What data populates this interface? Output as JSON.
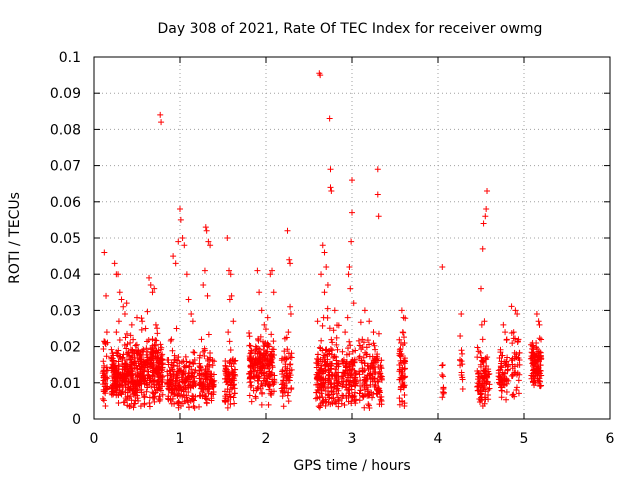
{
  "chart_data": {
    "type": "scatter",
    "title": "Day 308 of 2021, Rate Of TEC Index for receiver owmg",
    "xlabel": "GPS time / hours",
    "ylabel": "ROTI / TECUs",
    "xlim": [
      0,
      6
    ],
    "ylim": [
      0,
      0.1
    ],
    "x_ticks": [
      0,
      1,
      2,
      3,
      4,
      5,
      6
    ],
    "x_tick_labels": [
      "0",
      "1",
      "2",
      "3",
      "4",
      "5",
      "6"
    ],
    "y_ticks": [
      0,
      0.01,
      0.02,
      0.03,
      0.04,
      0.05,
      0.06,
      0.07,
      0.08,
      0.09,
      0.1
    ],
    "y_tick_labels": [
      "0",
      "0.01",
      "0.02",
      "0.03",
      "0.04",
      "0.05",
      "0.06",
      "0.07",
      "0.08",
      "0.09",
      "0.1"
    ],
    "grid": true,
    "marker": "+",
    "marker_color": "#ff0000",
    "series": [
      {
        "name": "ROTI",
        "clusters": [
          {
            "x_start": 0.1,
            "x_end": 0.16,
            "count": 40,
            "y_base": 0.012,
            "spread": 0.004,
            "outliers": [
              [
                0.12,
                0.046
              ],
              [
                0.14,
                0.034
              ],
              [
                0.15,
                0.024
              ],
              [
                0.13,
                0.021
              ]
            ]
          },
          {
            "x_start": 0.2,
            "x_end": 0.4,
            "count": 170,
            "y_base": 0.012,
            "spread": 0.005,
            "outliers": [
              [
                0.24,
                0.043
              ],
              [
                0.26,
                0.04
              ],
              [
                0.28,
                0.04
              ],
              [
                0.3,
                0.035
              ],
              [
                0.32,
                0.033
              ],
              [
                0.34,
                0.031
              ],
              [
                0.36,
                0.029
              ],
              [
                0.26,
                0.024
              ],
              [
                0.29,
                0.027
              ],
              [
                0.38,
                0.032
              ]
            ]
          },
          {
            "x_start": 0.4,
            "x_end": 0.62,
            "count": 200,
            "y_base": 0.012,
            "spread": 0.005,
            "outliers": [
              [
                0.44,
                0.026
              ],
              [
                0.5,
                0.028
              ],
              [
                0.56,
                0.027
              ],
              [
                0.6,
                0.025
              ]
            ]
          },
          {
            "x_start": 0.62,
            "x_end": 0.8,
            "count": 160,
            "y_base": 0.013,
            "spread": 0.005,
            "outliers": [
              [
                0.64,
                0.039
              ],
              [
                0.66,
                0.037
              ],
              [
                0.68,
                0.035
              ],
              [
                0.7,
                0.036
              ],
              [
                0.77,
                0.084
              ],
              [
                0.78,
                0.082
              ],
              [
                0.72,
                0.026
              ]
            ]
          },
          {
            "x_start": 0.85,
            "x_end": 1.18,
            "count": 200,
            "y_base": 0.01,
            "spread": 0.004,
            "outliers": [
              [
                0.92,
                0.045
              ],
              [
                0.95,
                0.043
              ],
              [
                0.98,
                0.049
              ],
              [
                1.0,
                0.058
              ],
              [
                1.01,
                0.055
              ],
              [
                1.03,
                0.05
              ],
              [
                1.05,
                0.048
              ],
              [
                1.08,
                0.04
              ],
              [
                1.1,
                0.033
              ],
              [
                1.13,
                0.029
              ],
              [
                1.15,
                0.027
              ],
              [
                0.96,
                0.025
              ],
              [
                0.9,
                0.022
              ]
            ]
          },
          {
            "x_start": 1.22,
            "x_end": 1.4,
            "count": 110,
            "y_base": 0.011,
            "spread": 0.004,
            "outliers": [
              [
                1.3,
                0.053
              ],
              [
                1.31,
                0.052
              ],
              [
                1.33,
                0.049
              ],
              [
                1.35,
                0.048
              ],
              [
                1.29,
                0.041
              ],
              [
                1.27,
                0.037
              ],
              [
                1.32,
                0.034
              ],
              [
                1.25,
                0.022
              ]
            ]
          },
          {
            "x_start": 1.52,
            "x_end": 1.65,
            "count": 80,
            "y_base": 0.011,
            "spread": 0.004,
            "outliers": [
              [
                1.55,
                0.05
              ],
              [
                1.57,
                0.041
              ],
              [
                1.59,
                0.04
              ],
              [
                1.6,
                0.034
              ],
              [
                1.58,
                0.033
              ],
              [
                1.62,
                0.027
              ],
              [
                1.56,
                0.024
              ]
            ]
          },
          {
            "x_start": 1.8,
            "x_end": 2.1,
            "count": 220,
            "y_base": 0.014,
            "spread": 0.005,
            "outliers": [
              [
                1.9,
                0.041
              ],
              [
                1.92,
                0.035
              ],
              [
                1.95,
                0.03
              ],
              [
                2.05,
                0.04
              ],
              [
                2.07,
                0.041
              ],
              [
                2.09,
                0.035
              ],
              [
                1.98,
                0.026
              ],
              [
                2.02,
                0.028
              ]
            ]
          },
          {
            "x_start": 2.18,
            "x_end": 2.3,
            "count": 60,
            "y_base": 0.011,
            "spread": 0.004,
            "outliers": [
              [
                2.25,
                0.052
              ],
              [
                2.27,
                0.044
              ],
              [
                2.28,
                0.043
              ],
              [
                2.28,
                0.031
              ],
              [
                2.29,
                0.029
              ],
              [
                2.26,
                0.024
              ]
            ]
          },
          {
            "x_start": 2.58,
            "x_end": 2.85,
            "count": 200,
            "y_base": 0.012,
            "spread": 0.006,
            "outliers": [
              [
                2.62,
                0.0955
              ],
              [
                2.63,
                0.095
              ],
              [
                2.66,
                0.048
              ],
              [
                2.68,
                0.046
              ],
              [
                2.7,
                0.042
              ],
              [
                2.74,
                0.083
              ],
              [
                2.75,
                0.069
              ],
              [
                2.75,
                0.064
              ],
              [
                2.76,
                0.063
              ],
              [
                2.64,
                0.04
              ],
              [
                2.72,
                0.037
              ],
              [
                2.68,
                0.035
              ],
              [
                2.8,
                0.03
              ],
              [
                2.67,
                0.028
              ]
            ]
          },
          {
            "x_start": 2.88,
            "x_end": 3.05,
            "count": 110,
            "y_base": 0.011,
            "spread": 0.005,
            "outliers": [
              [
                3.0,
                0.066
              ],
              [
                3.0,
                0.057
              ],
              [
                2.99,
                0.049
              ],
              [
                2.97,
                0.042
              ],
              [
                2.96,
                0.04
              ],
              [
                2.98,
                0.036
              ],
              [
                3.02,
                0.032
              ],
              [
                2.95,
                0.028
              ],
              [
                2.92,
                0.024
              ]
            ]
          },
          {
            "x_start": 3.08,
            "x_end": 3.35,
            "count": 150,
            "y_base": 0.012,
            "spread": 0.005,
            "outliers": [
              [
                3.3,
                0.069
              ],
              [
                3.3,
                0.062
              ],
              [
                3.31,
                0.056
              ],
              [
                3.15,
                0.03
              ],
              [
                3.2,
                0.027
              ],
              [
                3.25,
                0.024
              ],
              [
                3.12,
                0.022
              ]
            ]
          },
          {
            "x_start": 3.55,
            "x_end": 3.62,
            "count": 60,
            "y_base": 0.013,
            "spread": 0.006,
            "outliers": [
              [
                3.58,
                0.03
              ],
              [
                3.6,
                0.028
              ],
              [
                3.59,
                0.024
              ],
              [
                3.57,
                0.021
              ]
            ]
          },
          {
            "x_start": 4.03,
            "x_end": 4.07,
            "count": 10,
            "y_base": 0.01,
            "spread": 0.003,
            "outliers": [
              [
                4.05,
                0.042
              ],
              [
                4.05,
                0.006
              ]
            ]
          },
          {
            "x_start": 4.25,
            "x_end": 4.3,
            "count": 12,
            "y_base": 0.013,
            "spread": 0.004,
            "outliers": [
              [
                4.27,
                0.029
              ],
              [
                4.28,
                0.018
              ]
            ]
          },
          {
            "x_start": 4.45,
            "x_end": 4.6,
            "count": 90,
            "y_base": 0.011,
            "spread": 0.004,
            "outliers": [
              [
                4.5,
                0.036
              ],
              [
                4.52,
                0.047
              ],
              [
                4.53,
                0.054
              ],
              [
                4.55,
                0.056
              ],
              [
                4.56,
                0.058
              ],
              [
                4.57,
                0.063
              ],
              [
                4.54,
                0.027
              ],
              [
                4.51,
                0.026
              ],
              [
                4.52,
                0.022
              ]
            ]
          },
          {
            "x_start": 4.7,
            "x_end": 4.82,
            "count": 60,
            "y_base": 0.013,
            "spread": 0.004,
            "outliers": [
              [
                4.76,
                0.026
              ],
              [
                4.78,
                0.024
              ],
              [
                4.8,
                0.022
              ],
              [
                4.74,
                0.006
              ]
            ]
          },
          {
            "x_start": 4.85,
            "x_end": 4.95,
            "count": 40,
            "y_base": 0.016,
            "spread": 0.005,
            "outliers": [
              [
                4.9,
                0.03
              ],
              [
                4.92,
                0.029
              ],
              [
                4.88,
                0.024
              ],
              [
                4.91,
                0.008
              ]
            ]
          },
          {
            "x_start": 5.08,
            "x_end": 5.2,
            "count": 110,
            "y_base": 0.014,
            "spread": 0.004,
            "outliers": [
              [
                5.15,
                0.029
              ],
              [
                5.17,
                0.027
              ],
              [
                5.18,
                0.026
              ],
              [
                5.1,
                0.021
              ]
            ]
          }
        ]
      }
    ]
  }
}
